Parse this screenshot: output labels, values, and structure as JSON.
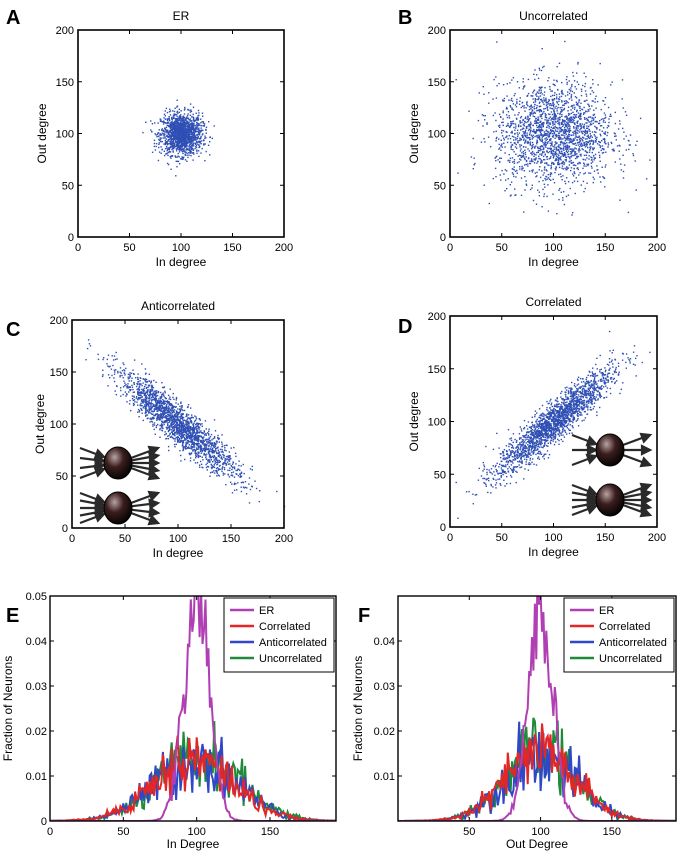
{
  "chart_data": [
    {
      "panel": "A",
      "type": "scatter",
      "title": "ER",
      "xlabel": "In degree",
      "ylabel": "Out degree",
      "xlim": [
        0,
        200
      ],
      "ylim": [
        0,
        200
      ],
      "xticks": [
        "0",
        "50",
        "100",
        "150",
        "200"
      ],
      "yticks": [
        "0",
        "50",
        "100",
        "150",
        "200"
      ],
      "point_color": "#2f4fb5",
      "cloud": {
        "n": 1500,
        "mean_in": 100,
        "mean_out": 100,
        "sd_in": 10,
        "sd_out": 10,
        "corr": 0
      },
      "insets": []
    },
    {
      "panel": "B",
      "type": "scatter",
      "title": "Uncorrelated",
      "xlabel": "In degree",
      "ylabel": "Out degree",
      "xlim": [
        0,
        200
      ],
      "ylim": [
        0,
        200
      ],
      "xticks": [
        "0",
        "50",
        "100",
        "150",
        "200"
      ],
      "yticks": [
        "0",
        "50",
        "100",
        "150",
        "200"
      ],
      "point_color": "#2f4fb5",
      "cloud": {
        "n": 2000,
        "mean_in": 100,
        "mean_out": 100,
        "sd_in": 28,
        "sd_out": 25,
        "corr": 0
      },
      "insets": []
    },
    {
      "panel": "C",
      "type": "scatter",
      "title": "Anticorrelated",
      "xlabel": "In degree",
      "ylabel": "Out degree",
      "xlim": [
        0,
        200
      ],
      "ylim": [
        0,
        200
      ],
      "xticks": [
        "0",
        "50",
        "100",
        "150",
        "200"
      ],
      "yticks": [
        "0",
        "50",
        "100",
        "150",
        "200"
      ],
      "point_color": "#2f4fb5",
      "cloud": {
        "n": 2000,
        "mean_in": 100,
        "mean_out": 100,
        "sd_in": 28,
        "sd_out": 25,
        "corr": -0.92
      },
      "insets": [
        {
          "in_arrows": 4,
          "out_arrows": 5
        },
        {
          "in_arrows": 5,
          "out_arrows": 4
        }
      ]
    },
    {
      "panel": "D",
      "type": "scatter",
      "title": "Correlated",
      "xlabel": "In degree",
      "ylabel": "Out degree",
      "xlim": [
        0,
        200
      ],
      "ylim": [
        0,
        200
      ],
      "xticks": [
        "0",
        "50",
        "100",
        "150",
        "200"
      ],
      "yticks": [
        "0",
        "50",
        "100",
        "150",
        "200"
      ],
      "point_color": "#2f4fb5",
      "cloud": {
        "n": 2000,
        "mean_in": 100,
        "mean_out": 100,
        "sd_in": 28,
        "sd_out": 25,
        "corr": 0.92
      },
      "insets": [
        {
          "in_arrows": 3,
          "out_arrows": 3
        },
        {
          "in_arrows": 5,
          "out_arrows": 5
        }
      ]
    },
    {
      "panel": "E",
      "type": "line",
      "xlabel": "In Degree",
      "ylabel": "Fraction of Neurons",
      "xlim": [
        0,
        195
      ],
      "ylim": [
        0,
        0.05
      ],
      "xticks": [
        {
          "value": 0,
          "label": "0"
        },
        {
          "value": 50,
          "label": "50"
        },
        {
          "value": 100,
          "label": "100"
        },
        {
          "value": 150,
          "label": "150"
        }
      ],
      "yticks": [
        {
          "value": 0,
          "label": "0"
        },
        {
          "value": 0.01,
          "label": "0.01"
        },
        {
          "value": 0.02,
          "label": "0.02"
        },
        {
          "value": 0.03,
          "label": "0.03"
        },
        {
          "value": 0.04,
          "label": "0.04"
        },
        {
          "value": 0.05,
          "label": "0.05"
        }
      ],
      "series": [
        {
          "name": "ER",
          "color": "#b03fb3",
          "mean": 100,
          "sd": 8.5,
          "peak": 0.05
        },
        {
          "name": "Correlated",
          "color": "#e32626",
          "mean": 98,
          "sd": 28,
          "peak": 0.0135
        },
        {
          "name": "Anticorrelated",
          "color": "#3047c7",
          "mean": 100,
          "sd": 28,
          "peak": 0.0138
        },
        {
          "name": "Uncorrelated",
          "color": "#1f8a3a",
          "mean": 102,
          "sd": 28,
          "peak": 0.0142
        }
      ]
    },
    {
      "panel": "F",
      "type": "line",
      "xlabel": "Out Degree",
      "ylabel": "Fraction of Neurons",
      "xlim": [
        0,
        195
      ],
      "ylim": [
        0,
        0.05
      ],
      "xticks": [
        {
          "value": 50,
          "label": "50"
        },
        {
          "value": 100,
          "label": "100"
        },
        {
          "value": 150,
          "label": "150"
        }
      ],
      "yticks": [
        {
          "value": 0.01,
          "label": "0.01"
        },
        {
          "value": 0.02,
          "label": "0.02"
        },
        {
          "value": 0.03,
          "label": "0.03"
        },
        {
          "value": 0.04,
          "label": "0.04"
        }
      ],
      "series": [
        {
          "name": "ER",
          "color": "#b03fb3",
          "mean": 100,
          "sd": 8.5,
          "peak": 0.05
        },
        {
          "name": "Correlated",
          "color": "#e32626",
          "mean": 100,
          "sd": 25,
          "peak": 0.0148
        },
        {
          "name": "Anticorrelated",
          "color": "#3047c7",
          "mean": 100,
          "sd": 25,
          "peak": 0.015
        },
        {
          "name": "Uncorrelated",
          "color": "#1f8a3a",
          "mean": 100,
          "sd": 25,
          "peak": 0.0152
        }
      ]
    }
  ]
}
